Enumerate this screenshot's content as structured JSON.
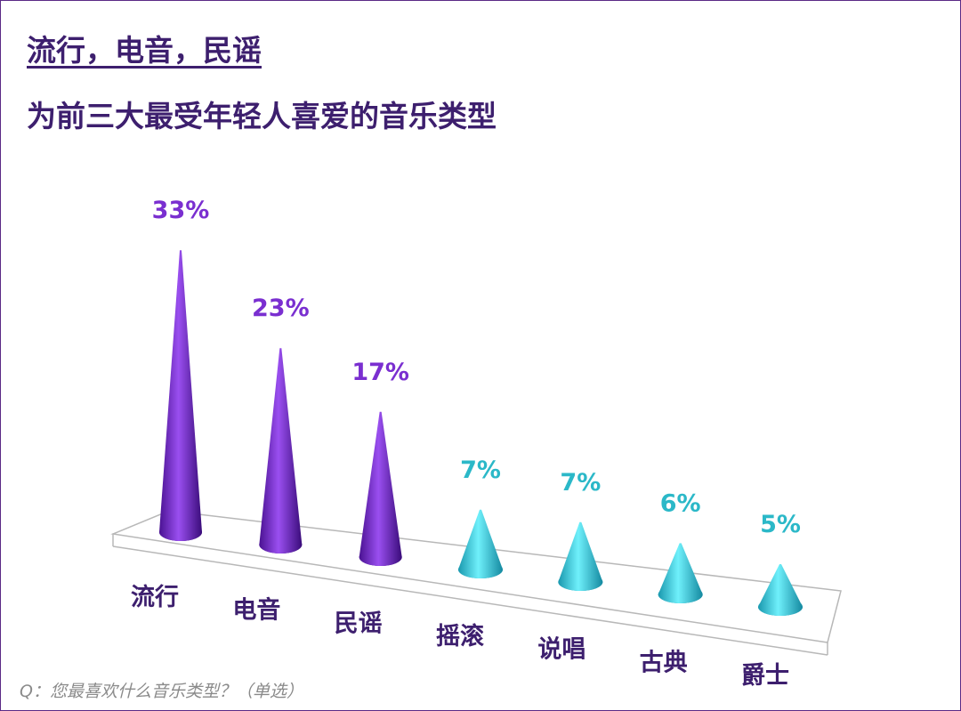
{
  "header": {
    "title": "流行，电音，民谣",
    "subtitle": "为前三大最受年轻人喜爱的音乐类型"
  },
  "footer": {
    "question": "Q：您最喜欢什么音乐类型？（单选）"
  },
  "colors": {
    "title": "#3d1f6e",
    "top_label": "#7a2fd0",
    "other_label": "#2bb8c8",
    "category_label": "#3d1f6e"
  },
  "chart_data": {
    "type": "bar",
    "categories": [
      "流行",
      "电音",
      "民谣",
      "摇滚",
      "说唱",
      "古典",
      "爵士"
    ],
    "values": [
      33,
      23,
      17,
      7,
      7,
      6,
      5
    ],
    "value_labels": [
      "33%",
      "23%",
      "17%",
      "7%",
      "7%",
      "6%",
      "5%"
    ],
    "unit": "%",
    "highlight_count": 3,
    "ylim": [
      0,
      35
    ],
    "grid": false,
    "legend": "none",
    "mark_shape": "cone"
  }
}
